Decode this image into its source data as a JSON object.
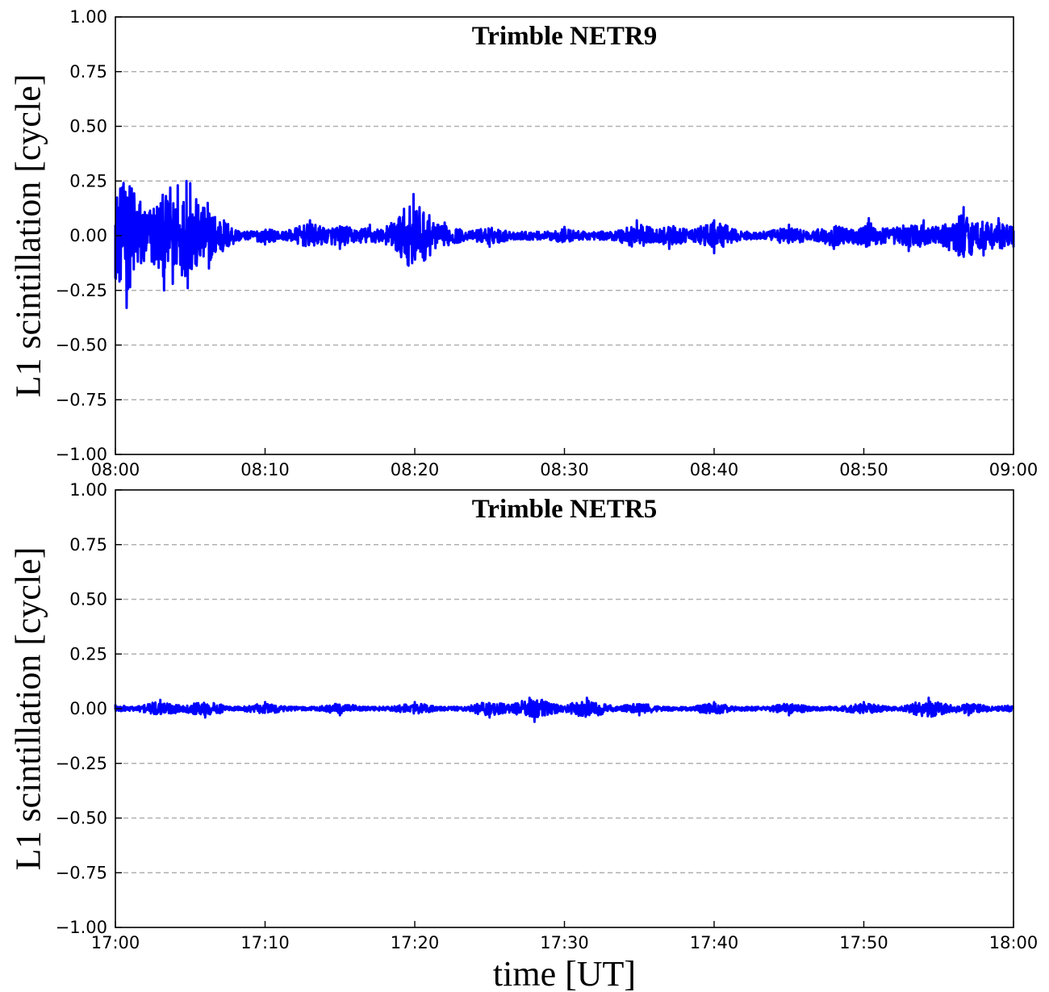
{
  "chart_data": [
    {
      "type": "line",
      "title": "Trimble NETR9",
      "ylabel": "L1 scintillation [cycle]",
      "xlabel": "",
      "xlim": [
        "08:00",
        "09:00"
      ],
      "ylim": [
        -1.0,
        1.0
      ],
      "x_ticks": [
        "08:00",
        "08:10",
        "08:20",
        "08:30",
        "08:40",
        "08:50",
        "09:00"
      ],
      "y_ticks": [
        "1.00",
        "0.75",
        "0.50",
        "0.25",
        "0.00",
        "−0.25",
        "−0.50",
        "−0.75",
        "−1.00"
      ],
      "grid": "horizontal dashed",
      "series_color": "#0000ff",
      "series": [
        {
          "values": [
            {
              "t": "08:00",
              "y": 0.05
            },
            {
              "t": "08:00:20",
              "y": -0.09
            },
            {
              "t": "08:00:40",
              "y": 0.2
            },
            {
              "t": "08:00:45",
              "y": -0.33
            },
            {
              "t": "08:01:10",
              "y": 0.06
            },
            {
              "t": "08:01:40",
              "y": -0.05
            },
            {
              "t": "08:02:10",
              "y": 0.07
            },
            {
              "t": "08:02:50",
              "y": -0.05
            },
            {
              "t": "08:03:10",
              "y": 0.14
            },
            {
              "t": "08:03:15",
              "y": -0.25
            },
            {
              "t": "08:03:40",
              "y": 0.22
            },
            {
              "t": "08:03:50",
              "y": -0.22
            },
            {
              "t": "08:04:10",
              "y": 0.23
            },
            {
              "t": "08:04:30",
              "y": -0.14
            },
            {
              "t": "08:04:45",
              "y": 0.25
            },
            {
              "t": "08:04:50",
              "y": -0.24
            },
            {
              "t": "08:05:00",
              "y": 0.24
            },
            {
              "t": "08:05:30",
              "y": -0.06
            },
            {
              "t": "08:06:10",
              "y": 0.15
            },
            {
              "t": "08:06:15",
              "y": -0.15
            },
            {
              "t": "08:07:00",
              "y": 0.05
            },
            {
              "t": "08:10:00",
              "y": -0.04
            },
            {
              "t": "08:13:00",
              "y": 0.07
            },
            {
              "t": "08:15:00",
              "y": -0.06
            },
            {
              "t": "08:17:00",
              "y": 0.05
            },
            {
              "t": "08:19:55",
              "y": 0.19
            },
            {
              "t": "08:20:00",
              "y": -0.09
            },
            {
              "t": "08:22:00",
              "y": 0.06
            },
            {
              "t": "08:25:00",
              "y": -0.05
            },
            {
              "t": "08:30:00",
              "y": 0.04
            },
            {
              "t": "08:34:50",
              "y": 0.07
            },
            {
              "t": "08:37:00",
              "y": -0.06
            },
            {
              "t": "08:40:00",
              "y": 0.07
            },
            {
              "t": "08:40:00",
              "y": -0.08
            },
            {
              "t": "08:45:00",
              "y": 0.05
            },
            {
              "t": "08:48:00",
              "y": -0.06
            },
            {
              "t": "08:50:20",
              "y": 0.08
            },
            {
              "t": "08:53:00",
              "y": -0.07
            },
            {
              "t": "08:54:00",
              "y": 0.07
            },
            {
              "t": "08:56:20",
              "y": -0.09
            },
            {
              "t": "08:56:40",
              "y": 0.13
            },
            {
              "t": "08:58:00",
              "y": -0.09
            },
            {
              "t": "08:59:00",
              "y": 0.08
            },
            {
              "t": "09:00",
              "y": -0.05
            }
          ]
        }
      ]
    },
    {
      "type": "line",
      "title": "Trimble NETR5",
      "ylabel": "L1 scintillation [cycle]",
      "xlabel": "time [UT]",
      "xlim": [
        "17:00",
        "18:00"
      ],
      "ylim": [
        -1.0,
        1.0
      ],
      "x_ticks": [
        "17:00",
        "17:10",
        "17:20",
        "17:30",
        "17:40",
        "17:50",
        "18:00"
      ],
      "y_ticks": [
        "1.00",
        "0.75",
        "0.50",
        "0.25",
        "0.00",
        "−0.25",
        "−0.50",
        "−0.75",
        "−1.00"
      ],
      "grid": "horizontal dashed",
      "series_color": "#0000ff",
      "series": [
        {
          "values": [
            {
              "t": "17:00",
              "y": 0.02
            },
            {
              "t": "17:03:00",
              "y": 0.04
            },
            {
              "t": "17:06:00",
              "y": -0.04
            },
            {
              "t": "17:10:00",
              "y": 0.03
            },
            {
              "t": "17:15:00",
              "y": -0.03
            },
            {
              "t": "17:20:00",
              "y": 0.03
            },
            {
              "t": "17:25:00",
              "y": -0.04
            },
            {
              "t": "17:27:40",
              "y": 0.05
            },
            {
              "t": "17:28:00",
              "y": -0.06
            },
            {
              "t": "17:31:30",
              "y": 0.05
            },
            {
              "t": "17:35:00",
              "y": -0.03
            },
            {
              "t": "17:40:00",
              "y": 0.03
            },
            {
              "t": "17:45:00",
              "y": -0.03
            },
            {
              "t": "17:50:00",
              "y": 0.03
            },
            {
              "t": "17:54:20",
              "y": 0.05
            },
            {
              "t": "17:57:00",
              "y": -0.03
            },
            {
              "t": "18:00",
              "y": 0.02
            }
          ]
        }
      ]
    }
  ]
}
